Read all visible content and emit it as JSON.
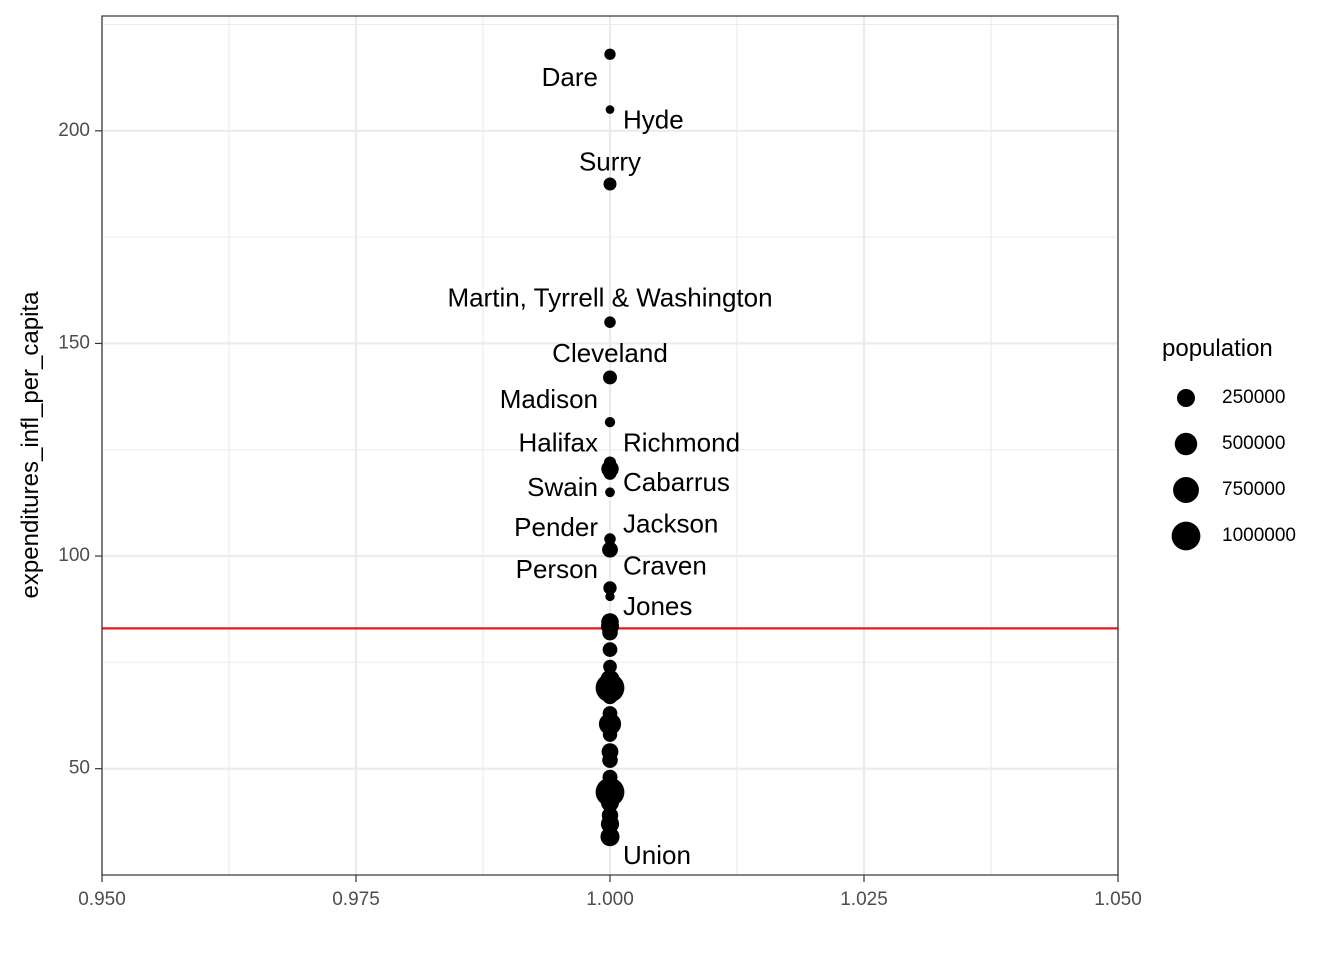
{
  "chart_data": {
    "type": "scatter",
    "xlabel": "",
    "ylabel": "expenditures_infl_per_capita",
    "xlim": [
      0.95,
      1.05
    ],
    "ylim": [
      25,
      227
    ],
    "x_ticks": [
      0.95,
      0.975,
      1.0,
      1.025,
      1.05
    ],
    "x_tick_labels": [
      "0.950",
      "0.975",
      "1.000",
      "1.025",
      "1.050"
    ],
    "y_ticks": [
      50,
      100,
      150,
      200
    ],
    "y_tick_labels": [
      "50",
      "100",
      "150",
      "200"
    ],
    "grid": true,
    "reference_line": {
      "y": 83,
      "color": "#e41a1c"
    },
    "point_color": "#000000",
    "points": [
      {
        "x": 1.0,
        "y": 218,
        "population": 36000
      },
      {
        "x": 1.0,
        "y": 205,
        "population": 5000
      },
      {
        "x": 1.0,
        "y": 187.5,
        "population": 72000
      },
      {
        "x": 1.0,
        "y": 155,
        "population": 40000
      },
      {
        "x": 1.0,
        "y": 142,
        "population": 97000
      },
      {
        "x": 1.0,
        "y": 131.5,
        "population": 21000
      },
      {
        "x": 1.0,
        "y": 122,
        "population": 52000
      },
      {
        "x": 1.0,
        "y": 120.5,
        "population": 225000
      },
      {
        "x": 1.0,
        "y": 119.5,
        "population": 78000
      },
      {
        "x": 1.0,
        "y": 115,
        "population": 14000
      },
      {
        "x": 1.0,
        "y": 104,
        "population": 40000
      },
      {
        "x": 1.0,
        "y": 101.5,
        "population": 160000
      },
      {
        "x": 1.0,
        "y": 92.5,
        "population": 80000
      },
      {
        "x": 1.0,
        "y": 90.5,
        "population": 10000
      },
      {
        "x": 1.0,
        "y": 84.5,
        "population": 230000
      },
      {
        "x": 1.0,
        "y": 83.5,
        "population": 250000
      },
      {
        "x": 1.0,
        "y": 82,
        "population": 150000
      },
      {
        "x": 1.0,
        "y": 78,
        "population": 120000
      },
      {
        "x": 1.0,
        "y": 74,
        "population": 90000
      },
      {
        "x": 1.0,
        "y": 71,
        "population": 300000
      },
      {
        "x": 1.0,
        "y": 69,
        "population": 1000000
      },
      {
        "x": 1.0,
        "y": 67,
        "population": 150000
      },
      {
        "x": 1.0,
        "y": 63,
        "population": 120000
      },
      {
        "x": 1.0,
        "y": 60.5,
        "population": 480000
      },
      {
        "x": 1.0,
        "y": 58,
        "population": 110000
      },
      {
        "x": 1.0,
        "y": 54,
        "population": 200000
      },
      {
        "x": 1.0,
        "y": 52,
        "population": 150000
      },
      {
        "x": 1.0,
        "y": 48,
        "population": 130000
      },
      {
        "x": 1.0,
        "y": 45,
        "population": 600000
      },
      {
        "x": 1.0,
        "y": 44.5,
        "population": 1000000
      },
      {
        "x": 1.0,
        "y": 42,
        "population": 250000
      },
      {
        "x": 1.0,
        "y": 39,
        "population": 180000
      },
      {
        "x": 1.0,
        "y": 37,
        "population": 260000
      },
      {
        "x": 1.0,
        "y": 34,
        "population": 300000
      }
    ],
    "labels": [
      {
        "text": "Dare",
        "x": 1.0,
        "y": 212.2,
        "anchor": "end"
      },
      {
        "text": "Hyde",
        "x": 1.0,
        "y": 202.2,
        "anchor": "start"
      },
      {
        "text": "Surry",
        "x": 1.0,
        "y": 192.3,
        "anchor": "middle"
      },
      {
        "text": "Martin, Tyrrell & Washington",
        "x": 1.0,
        "y": 160.3,
        "anchor": "middle"
      },
      {
        "text": "Cleveland",
        "x": 1.0,
        "y": 147.2,
        "anchor": "middle"
      },
      {
        "text": "Madison",
        "x": 1.0,
        "y": 136.4,
        "anchor": "end"
      },
      {
        "text": "Halifax",
        "x": 1.0,
        "y": 126.2,
        "anchor": "end"
      },
      {
        "text": "Richmond",
        "x": 1.0,
        "y": 126.2,
        "anchor": "start"
      },
      {
        "text": "Cabarrus",
        "x": 1.0,
        "y": 116.9,
        "anchor": "start"
      },
      {
        "text": "Swain",
        "x": 1.0,
        "y": 115.7,
        "anchor": "end"
      },
      {
        "text": "Jackson",
        "x": 1.0,
        "y": 107.2,
        "anchor": "start"
      },
      {
        "text": "Pender",
        "x": 1.0,
        "y": 106.3,
        "anchor": "end"
      },
      {
        "text": "Craven",
        "x": 1.0,
        "y": 97.3,
        "anchor": "start"
      },
      {
        "text": "Person",
        "x": 1.0,
        "y": 96.4,
        "anchor": "end"
      },
      {
        "text": "Jones",
        "x": 1.0,
        "y": 87.8,
        "anchor": "start"
      },
      {
        "text": "Union",
        "x": 1.0,
        "y": 29.2,
        "anchor": "start"
      }
    ],
    "legend": {
      "title": "population",
      "placement": "right",
      "entries": [
        {
          "label": "250000",
          "value": 250000
        },
        {
          "label": "500000",
          "value": 500000
        },
        {
          "label": "750000",
          "value": 750000
        },
        {
          "label": "1000000",
          "value": 1000000
        }
      ]
    }
  }
}
